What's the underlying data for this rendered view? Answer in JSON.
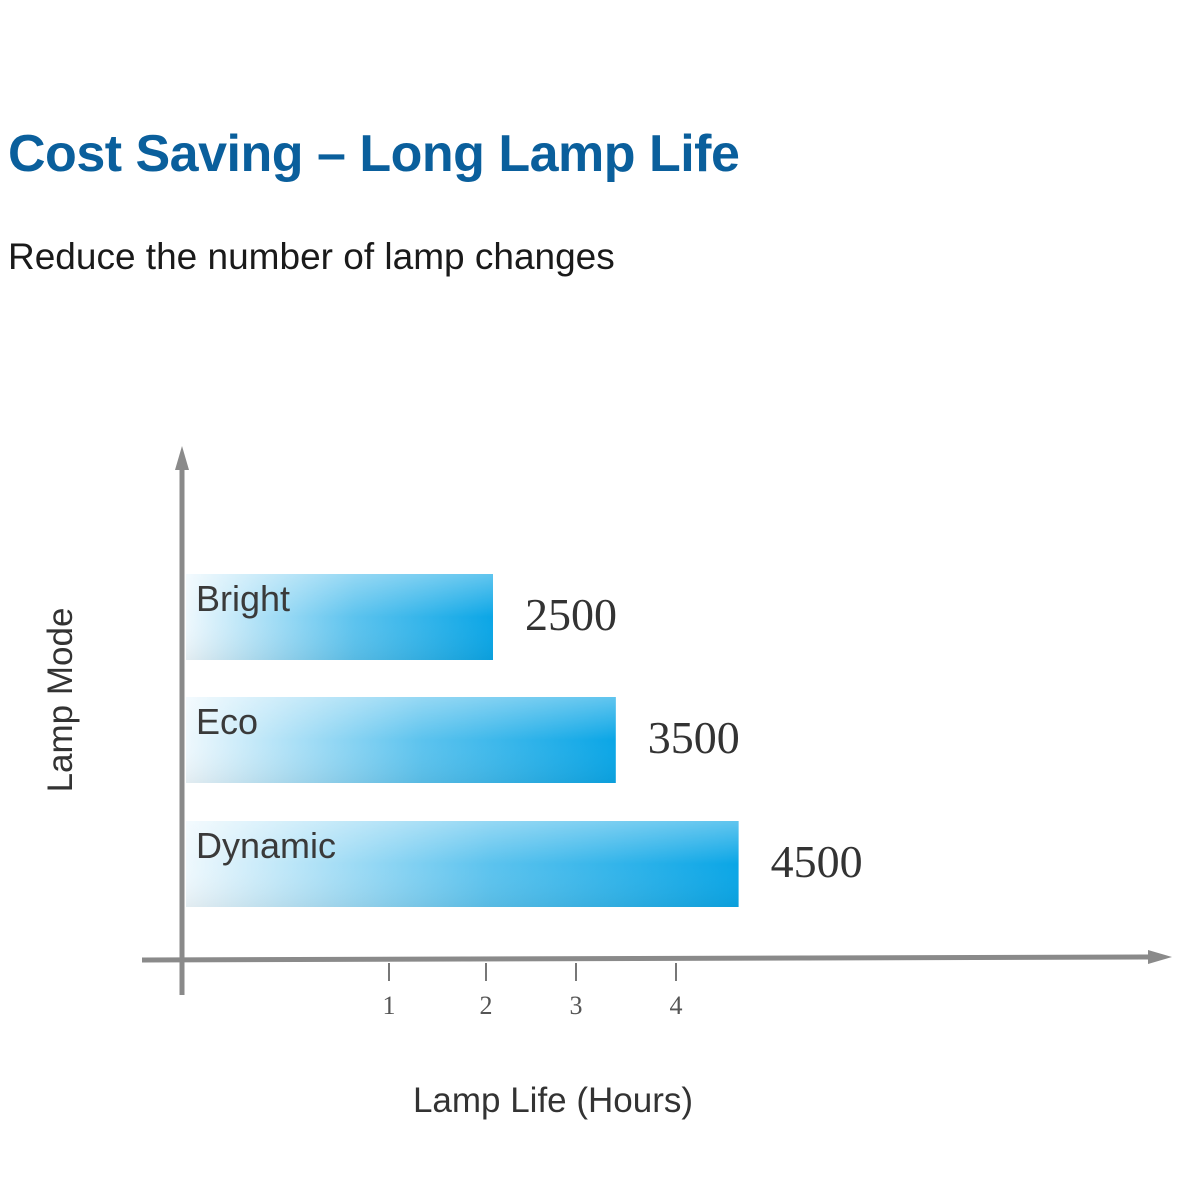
{
  "header": {
    "title": "Cost Saving – Long Lamp Life",
    "subtitle": "Reduce the number of lamp changes"
  },
  "colors": {
    "title": "#0a5f9c",
    "bar_start": "#eef8fd",
    "bar_end": "#0ba6e6",
    "axis": "#808080"
  },
  "chart_data": {
    "type": "bar",
    "orientation": "horizontal",
    "categories": [
      "Bright",
      "Eco",
      "Dynamic"
    ],
    "values": [
      2500,
      3500,
      4500
    ],
    "value_labels": [
      "2500",
      "3500",
      "4500"
    ],
    "xlabel": "Lamp Life (Hours)",
    "ylabel": "Lamp Mode",
    "x_ticks": [
      "1",
      "2",
      "3",
      "4"
    ],
    "grid": false,
    "legend": "none"
  }
}
